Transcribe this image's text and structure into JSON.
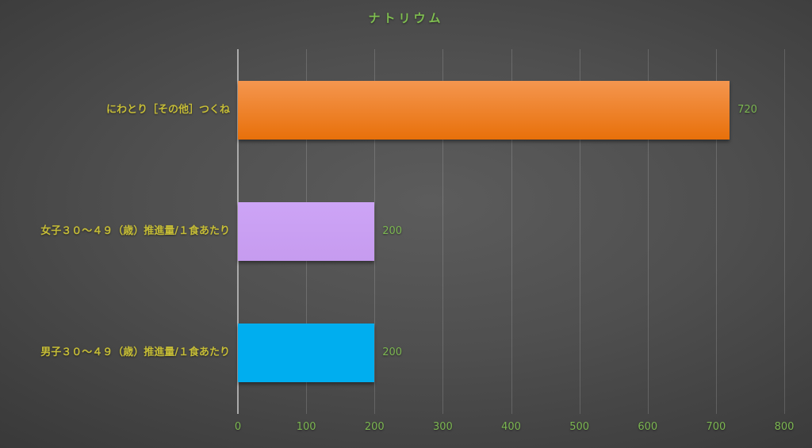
{
  "chart_data": {
    "type": "bar",
    "orientation": "horizontal",
    "title": "ナトリウム",
    "categories": [
      "にわとり［その他］つくね",
      "女子３０～４９（歳）推進量/１食あたり",
      "男子３０～４９（歳）推進量/１食あたり"
    ],
    "values": [
      720,
      200,
      200
    ],
    "value_labels": [
      "720",
      "200",
      "200"
    ],
    "xlabel": "",
    "ylabel": "",
    "xlim": [
      0,
      800
    ],
    "xticks": [
      0,
      100,
      200,
      300,
      400,
      500,
      600,
      700,
      800
    ],
    "grid": true,
    "legend": null,
    "colors": {
      "bar_gradients": [
        [
          "#f4964f",
          "#e8700a"
        ],
        [
          "#cda4f6",
          "#c69bef"
        ],
        [
          "#00aeef",
          "#00aeef"
        ]
      ],
      "title_text": "#7fbe50",
      "category_text": "#c6bd37",
      "value_text": "#7cb751",
      "tick_text": "#7cb751",
      "axis_line": "#ababab",
      "gridline": "rgba(255,255,255,0.16)"
    }
  }
}
